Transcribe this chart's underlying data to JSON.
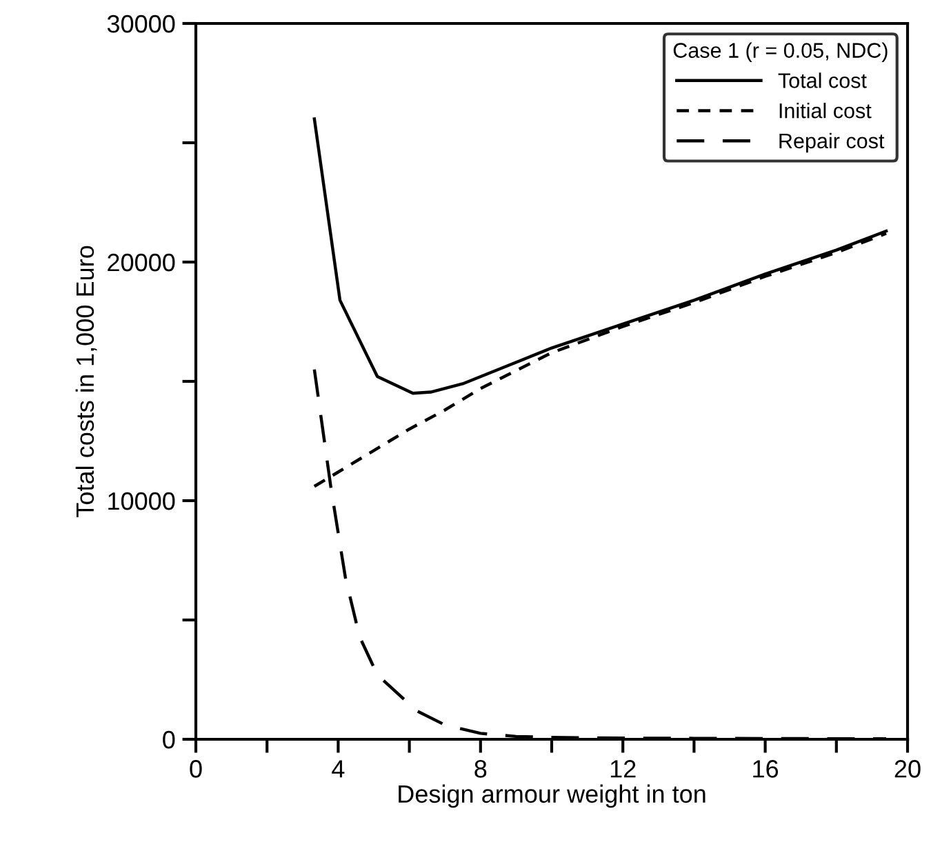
{
  "chart_data": {
    "type": "line",
    "xlabel": "Design armour weight in ton",
    "ylabel": "Total costs in 1,000 Euro",
    "legend_title": "Case 1 (r = 0.05, NDC)",
    "legend": "top right",
    "grid": false,
    "marker": "none",
    "xlim": [
      0,
      20
    ],
    "xticks": [
      0,
      {
        "value": 2,
        "label": null
      },
      4,
      {
        "value": 6,
        "label": null
      },
      8,
      {
        "value": 10,
        "label": null
      },
      12,
      {
        "value": 14,
        "label": null
      },
      16,
      {
        "value": 18,
        "label": null
      },
      20
    ],
    "ylim": [
      0,
      30000
    ],
    "yticks": [
      0,
      {
        "value": 5000,
        "label": null
      },
      10000,
      {
        "value": 15000,
        "label": null
      },
      20000,
      {
        "value": 25000,
        "label": null
      },
      30000
    ],
    "series": [
      {
        "name": "Total cost",
        "color": "#000000",
        "line_style": "solid",
        "x": [
          3.33,
          4.05,
          5.1,
          6.1,
          6.6,
          7.5,
          8.5,
          10,
          12,
          14,
          16,
          18,
          19.4
        ],
        "values": [
          26000,
          18400,
          15200,
          14500,
          14550,
          14900,
          15500,
          16400,
          17400,
          18400,
          19500,
          20500,
          21300
        ]
      },
      {
        "name": "Initial cost",
        "color": "#000000",
        "line_style": "dashed",
        "x": [
          3.33,
          4,
          5,
          6,
          7,
          8,
          10,
          12,
          14,
          16,
          18,
          19.4
        ],
        "values": [
          10600,
          11200,
          12100,
          13000,
          13800,
          14700,
          16200,
          17300,
          18300,
          19400,
          20400,
          21200
        ]
      },
      {
        "name": "Repair cost",
        "color": "#000000",
        "line_style": "longdash",
        "x": [
          3.33,
          3.8,
          4.2,
          4.6,
          5.1,
          6.2,
          7,
          8,
          9,
          10,
          12,
          14,
          16,
          19.4
        ],
        "values": [
          15500,
          10500,
          6800,
          4300,
          2700,
          1200,
          600,
          250,
          120,
          80,
          50,
          40,
          30,
          20
        ]
      }
    ]
  }
}
